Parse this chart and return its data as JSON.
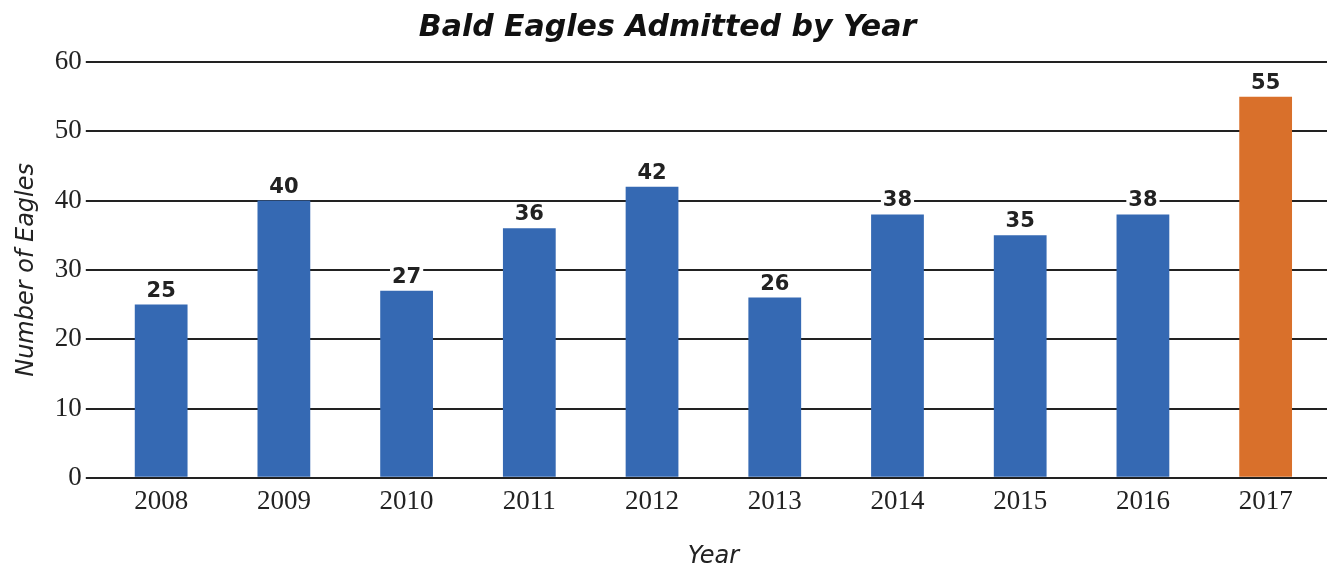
{
  "chart_data": {
    "type": "bar",
    "title": "Bald Eagles Admitted by Year",
    "xlabel": "Year",
    "ylabel": "Number of Eagles",
    "categories": [
      "2008",
      "2009",
      "2010",
      "2011",
      "2012",
      "2013",
      "2014",
      "2015",
      "2016",
      "2017"
    ],
    "values": [
      25,
      40,
      27,
      36,
      42,
      26,
      38,
      35,
      38,
      55
    ],
    "colors": [
      "#3569b3",
      "#3569b3",
      "#3569b3",
      "#3569b3",
      "#3569b3",
      "#3569b3",
      "#3569b3",
      "#3569b3",
      "#3569b3",
      "#d9702b"
    ],
    "ylim": [
      0,
      60
    ],
    "yticks": [
      0,
      10,
      20,
      30,
      40,
      50,
      60
    ],
    "grid": "y",
    "legend": false,
    "data_labels": true
  }
}
